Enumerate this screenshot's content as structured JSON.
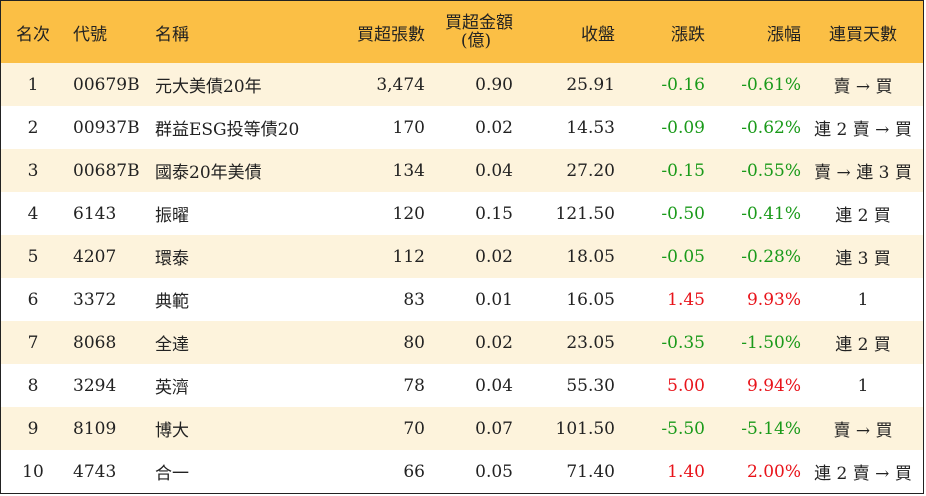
{
  "columns": {
    "rank": "名次",
    "code": "代號",
    "name": "名稱",
    "buy_lots": "買超張數",
    "buy_amount_line1": "買超金額",
    "buy_amount_line2": "(億)",
    "close": "收盤",
    "change": "漲跌",
    "change_pct": "漲幅",
    "days": "連買天數"
  },
  "colors": {
    "header_bg": "#fbbf45",
    "row_odd_bg": "#fdf3dc",
    "up": "#e8131a",
    "down": "#1a9a1a"
  },
  "rows": [
    {
      "rank": "1",
      "code": "00679B",
      "name": "元大美債20年",
      "buy_lots": "3,474",
      "buy_amount": "0.90",
      "close": "25.91",
      "change": "-0.16",
      "change_pct": "-0.61%",
      "dir": "down",
      "days": "賣 → 買"
    },
    {
      "rank": "2",
      "code": "00937B",
      "name": "群益ESG投等債20",
      "buy_lots": "170",
      "buy_amount": "0.02",
      "close": "14.53",
      "change": "-0.09",
      "change_pct": "-0.62%",
      "dir": "down",
      "days": "連 2 賣 → 買"
    },
    {
      "rank": "3",
      "code": "00687B",
      "name": "國泰20年美債",
      "buy_lots": "134",
      "buy_amount": "0.04",
      "close": "27.20",
      "change": "-0.15",
      "change_pct": "-0.55%",
      "dir": "down",
      "days": "賣 → 連 3 買"
    },
    {
      "rank": "4",
      "code": "6143",
      "name": "振曜",
      "buy_lots": "120",
      "buy_amount": "0.15",
      "close": "121.50",
      "change": "-0.50",
      "change_pct": "-0.41%",
      "dir": "down",
      "days": "連 2 買"
    },
    {
      "rank": "5",
      "code": "4207",
      "name": "環泰",
      "buy_lots": "112",
      "buy_amount": "0.02",
      "close": "18.05",
      "change": "-0.05",
      "change_pct": "-0.28%",
      "dir": "down",
      "days": "連 3 買"
    },
    {
      "rank": "6",
      "code": "3372",
      "name": "典範",
      "buy_lots": "83",
      "buy_amount": "0.01",
      "close": "16.05",
      "change": "1.45",
      "change_pct": "9.93%",
      "dir": "up",
      "days": "1"
    },
    {
      "rank": "7",
      "code": "8068",
      "name": "全達",
      "buy_lots": "80",
      "buy_amount": "0.02",
      "close": "23.05",
      "change": "-0.35",
      "change_pct": "-1.50%",
      "dir": "down",
      "days": "連 2 買"
    },
    {
      "rank": "8",
      "code": "3294",
      "name": "英濟",
      "buy_lots": "78",
      "buy_amount": "0.04",
      "close": "55.30",
      "change": "5.00",
      "change_pct": "9.94%",
      "dir": "up",
      "days": "1"
    },
    {
      "rank": "9",
      "code": "8109",
      "name": "博大",
      "buy_lots": "70",
      "buy_amount": "0.07",
      "close": "101.50",
      "change": "-5.50",
      "change_pct": "-5.14%",
      "dir": "down",
      "days": "賣 → 買"
    },
    {
      "rank": "10",
      "code": "4743",
      "name": "合一",
      "buy_lots": "66",
      "buy_amount": "0.05",
      "close": "71.40",
      "change": "1.40",
      "change_pct": "2.00%",
      "dir": "up",
      "days": "連 2 賣 → 買"
    }
  ]
}
